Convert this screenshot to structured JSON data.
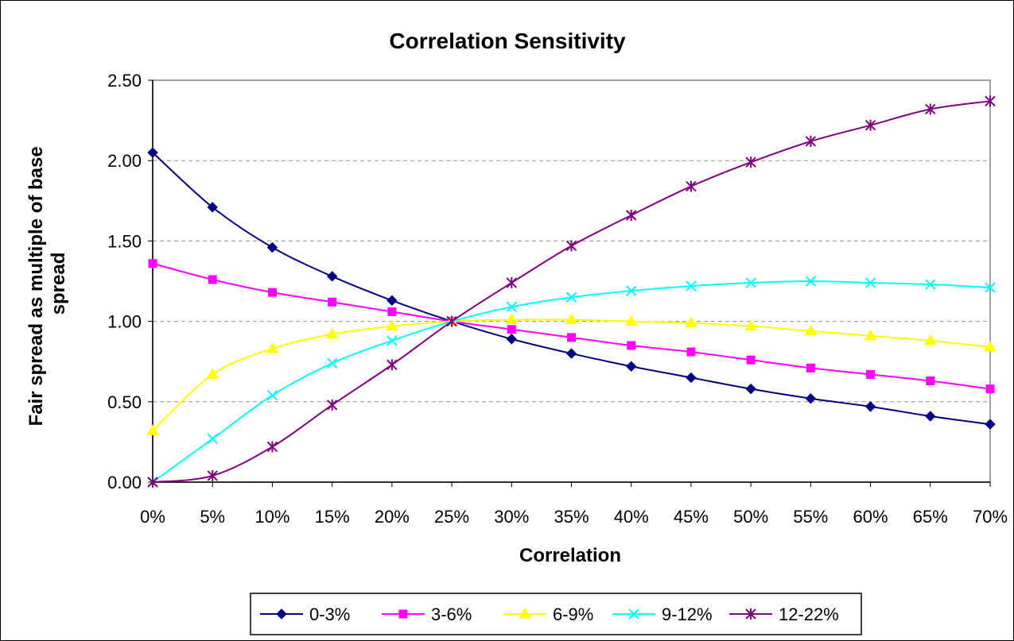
{
  "chart_data": {
    "type": "line",
    "title": "Correlation Sensitivity",
    "xlabel": "Correlation",
    "ylabel": "Fair spread as multiple of base spread",
    "x": [
      "0%",
      "5%",
      "10%",
      "15%",
      "20%",
      "25%",
      "30%",
      "35%",
      "40%",
      "45%",
      "50%",
      "55%",
      "60%",
      "65%",
      "70%"
    ],
    "ylim": [
      0,
      2.5
    ],
    "yticks": [
      "0.00",
      "0.50",
      "1.00",
      "1.50",
      "2.00",
      "2.50"
    ],
    "grid": "horizontal dashed",
    "legend_position": "bottom",
    "series": [
      {
        "name": "0-3%",
        "color": "#000080",
        "marker": "diamond",
        "values": [
          2.05,
          1.71,
          1.46,
          1.28,
          1.13,
          1.0,
          0.89,
          0.8,
          0.72,
          0.65,
          0.58,
          0.52,
          0.47,
          0.41,
          0.36
        ]
      },
      {
        "name": "3-6%",
        "color": "#FF00FF",
        "marker": "square",
        "values": [
          1.36,
          1.26,
          1.18,
          1.12,
          1.06,
          1.0,
          0.95,
          0.9,
          0.85,
          0.81,
          0.76,
          0.71,
          0.67,
          0.63,
          0.58
        ]
      },
      {
        "name": "6-9%",
        "color": "#FFFF00",
        "marker": "triangle",
        "values": [
          0.32,
          0.67,
          0.83,
          0.92,
          0.97,
          1.0,
          1.01,
          1.01,
          1.0,
          0.99,
          0.97,
          0.94,
          0.91,
          0.88,
          0.84
        ]
      },
      {
        "name": "9-12%",
        "color": "#00FFFF",
        "marker": "x",
        "values": [
          0.0,
          0.27,
          0.54,
          0.74,
          0.88,
          1.0,
          1.09,
          1.15,
          1.19,
          1.22,
          1.24,
          1.25,
          1.24,
          1.23,
          1.21
        ]
      },
      {
        "name": "12-22%",
        "color": "#800080",
        "marker": "star",
        "values": [
          0.0,
          0.04,
          0.22,
          0.48,
          0.73,
          1.0,
          1.24,
          1.47,
          1.66,
          1.84,
          1.99,
          2.12,
          2.22,
          2.32,
          2.37
        ]
      }
    ]
  }
}
